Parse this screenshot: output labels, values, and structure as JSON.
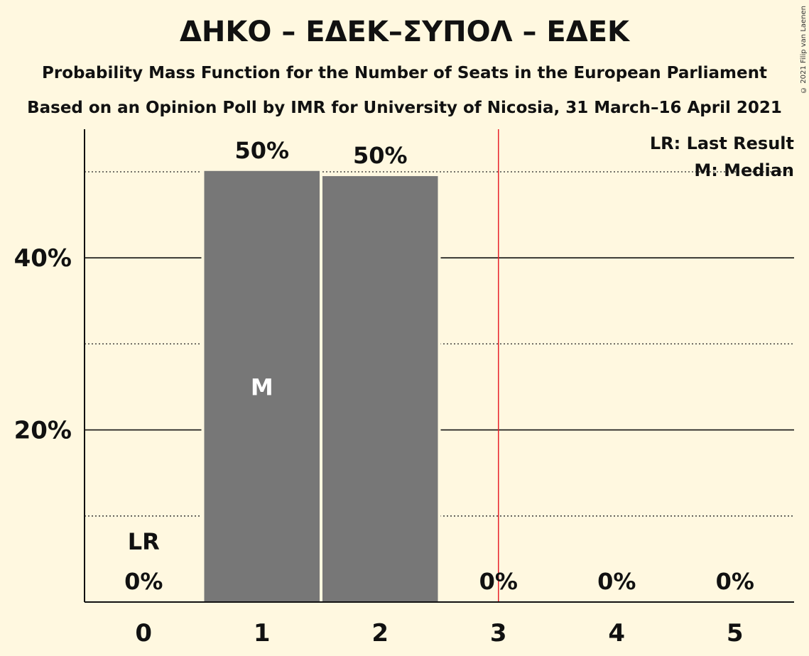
{
  "title": "ΔΗΚΟ – ΕΔΕΚ–ΣΥΠΟΛ – ΕΔΕΚ",
  "subtitle": "Probability Mass Function for the Number of Seats in the European Parliament",
  "subtitle2": "Based on an Opinion Poll by IMR for University of Nicosia, 31 March–16 April 2021",
  "copyright": "© 2021 Filip van Laenen",
  "colors": {
    "background": "#fff8e0",
    "bar": "#777777",
    "last_result_line": "#e8232b",
    "text": "#111111"
  },
  "chart_data": {
    "type": "bar",
    "categories": [
      "0",
      "1",
      "2",
      "3",
      "4",
      "5"
    ],
    "values": [
      0,
      50.1,
      49.5,
      0,
      0,
      0
    ],
    "value_labels": [
      "0%",
      "50%",
      "50%",
      "0%",
      "0%",
      "0%"
    ],
    "ylim": [
      0,
      55
    ],
    "y_major_ticks": [
      20,
      40
    ],
    "y_major_tick_labels": [
      "20%",
      "40%"
    ],
    "y_minor_ticks": [
      10,
      30,
      50
    ],
    "grid": true,
    "median_category": "1",
    "median_marker": "M",
    "last_result_category": "0",
    "last_result_marker": "LR",
    "last_result_line_at": 3.5,
    "legend": [
      "LR: Last Result",
      "M: Median"
    ],
    "legend_position": "top-right"
  }
}
